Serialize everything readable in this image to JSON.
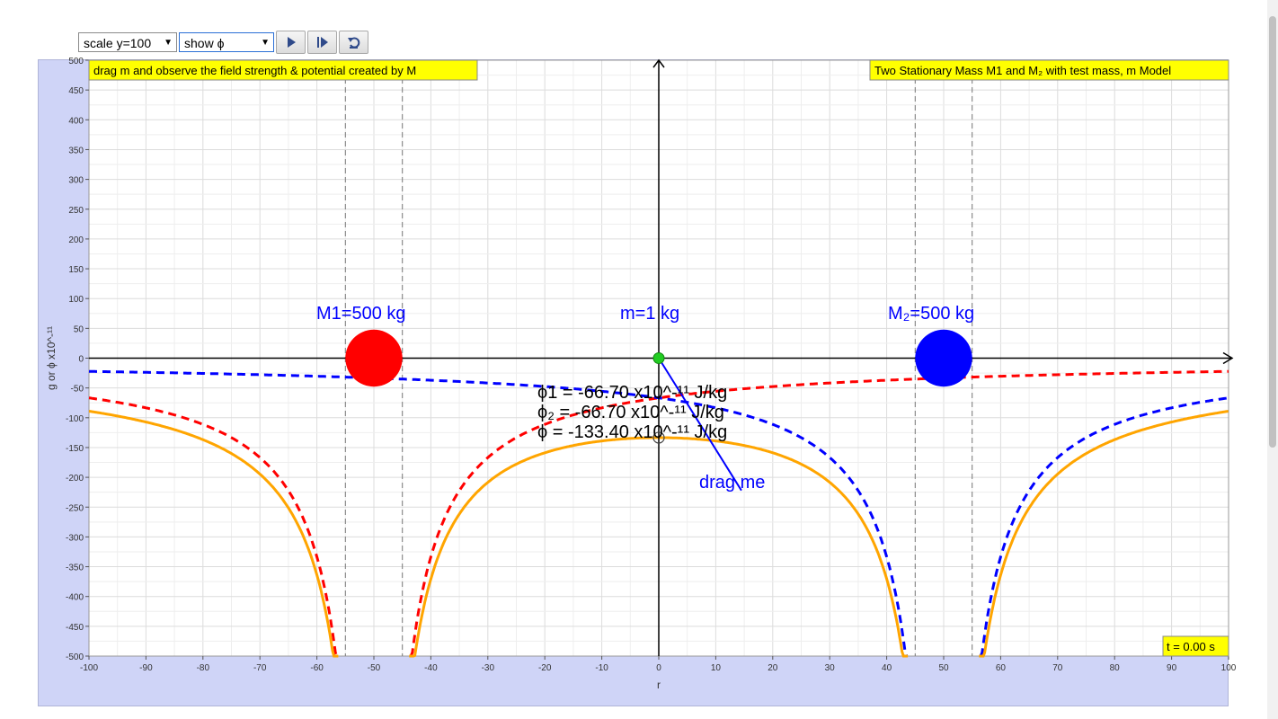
{
  "toolbar": {
    "scale_select": "scale y=100",
    "show_select": "show ϕ",
    "play_icon": "play-icon",
    "step_icon": "step-forward-icon",
    "reset_icon": "reset-icon"
  },
  "banners": {
    "left": "drag m and observe the field strength & potential created by M",
    "right": "Two Stationary Mass M1 and M₂ with test mass, m Model",
    "time": "t = 0.00 s"
  },
  "labels": {
    "m1": "M1=500 kg",
    "m": "m=1 kg",
    "m2": "M₂=500 kg",
    "phi1": "ϕ1 = -66.70 x10^-¹¹ J/kg",
    "phi2": "ϕ₂ = -66.70 x10^-¹¹ J/kg",
    "phi": "ϕ = -133.40 x10^-¹¹ J/kg",
    "drag": "drag me"
  },
  "colors": {
    "m1": "#ff0000",
    "m2": "#0000ff",
    "test_mass": "#22cc22",
    "total": "#ffa500",
    "banner": "#ffff00",
    "panel": "#cfd4f7"
  },
  "chart_data": {
    "type": "line",
    "xlabel": "r",
    "ylabel": "g or ϕ x10^-¹¹",
    "xlim": [
      -100,
      100
    ],
    "ylim": [
      -500,
      500
    ],
    "xticks": [
      -100,
      -90,
      -80,
      -70,
      -60,
      -50,
      -40,
      -30,
      -20,
      -10,
      0,
      10,
      20,
      30,
      40,
      50,
      60,
      70,
      80,
      90,
      100
    ],
    "yticks": [
      500,
      450,
      400,
      350,
      300,
      250,
      200,
      150,
      100,
      50,
      0,
      -50,
      -100,
      -150,
      -200,
      -250,
      -300,
      -350,
      -400,
      -450,
      -500
    ],
    "grid": true,
    "masses": [
      {
        "mass": 500,
        "x": -50,
        "radius": 5
      },
      {
        "mass": 500,
        "x": 50,
        "radius": 5
      }
    ],
    "test_mass": {
      "mass": 1,
      "x": 0,
      "y": 0
    },
    "probe_point": {
      "x": 0,
      "y": -133.4
    },
    "boundary_lines_x": [
      -55,
      -45,
      45,
      55
    ],
    "series": [
      {
        "style": "dashed",
        "color": "#ff0000",
        "mass_center": -50
      },
      {
        "style": "dashed",
        "color": "#0000ff",
        "mass_center": 50
      },
      {
        "style": "solid",
        "color": "#ffa500",
        "sum": true
      }
    ]
  }
}
